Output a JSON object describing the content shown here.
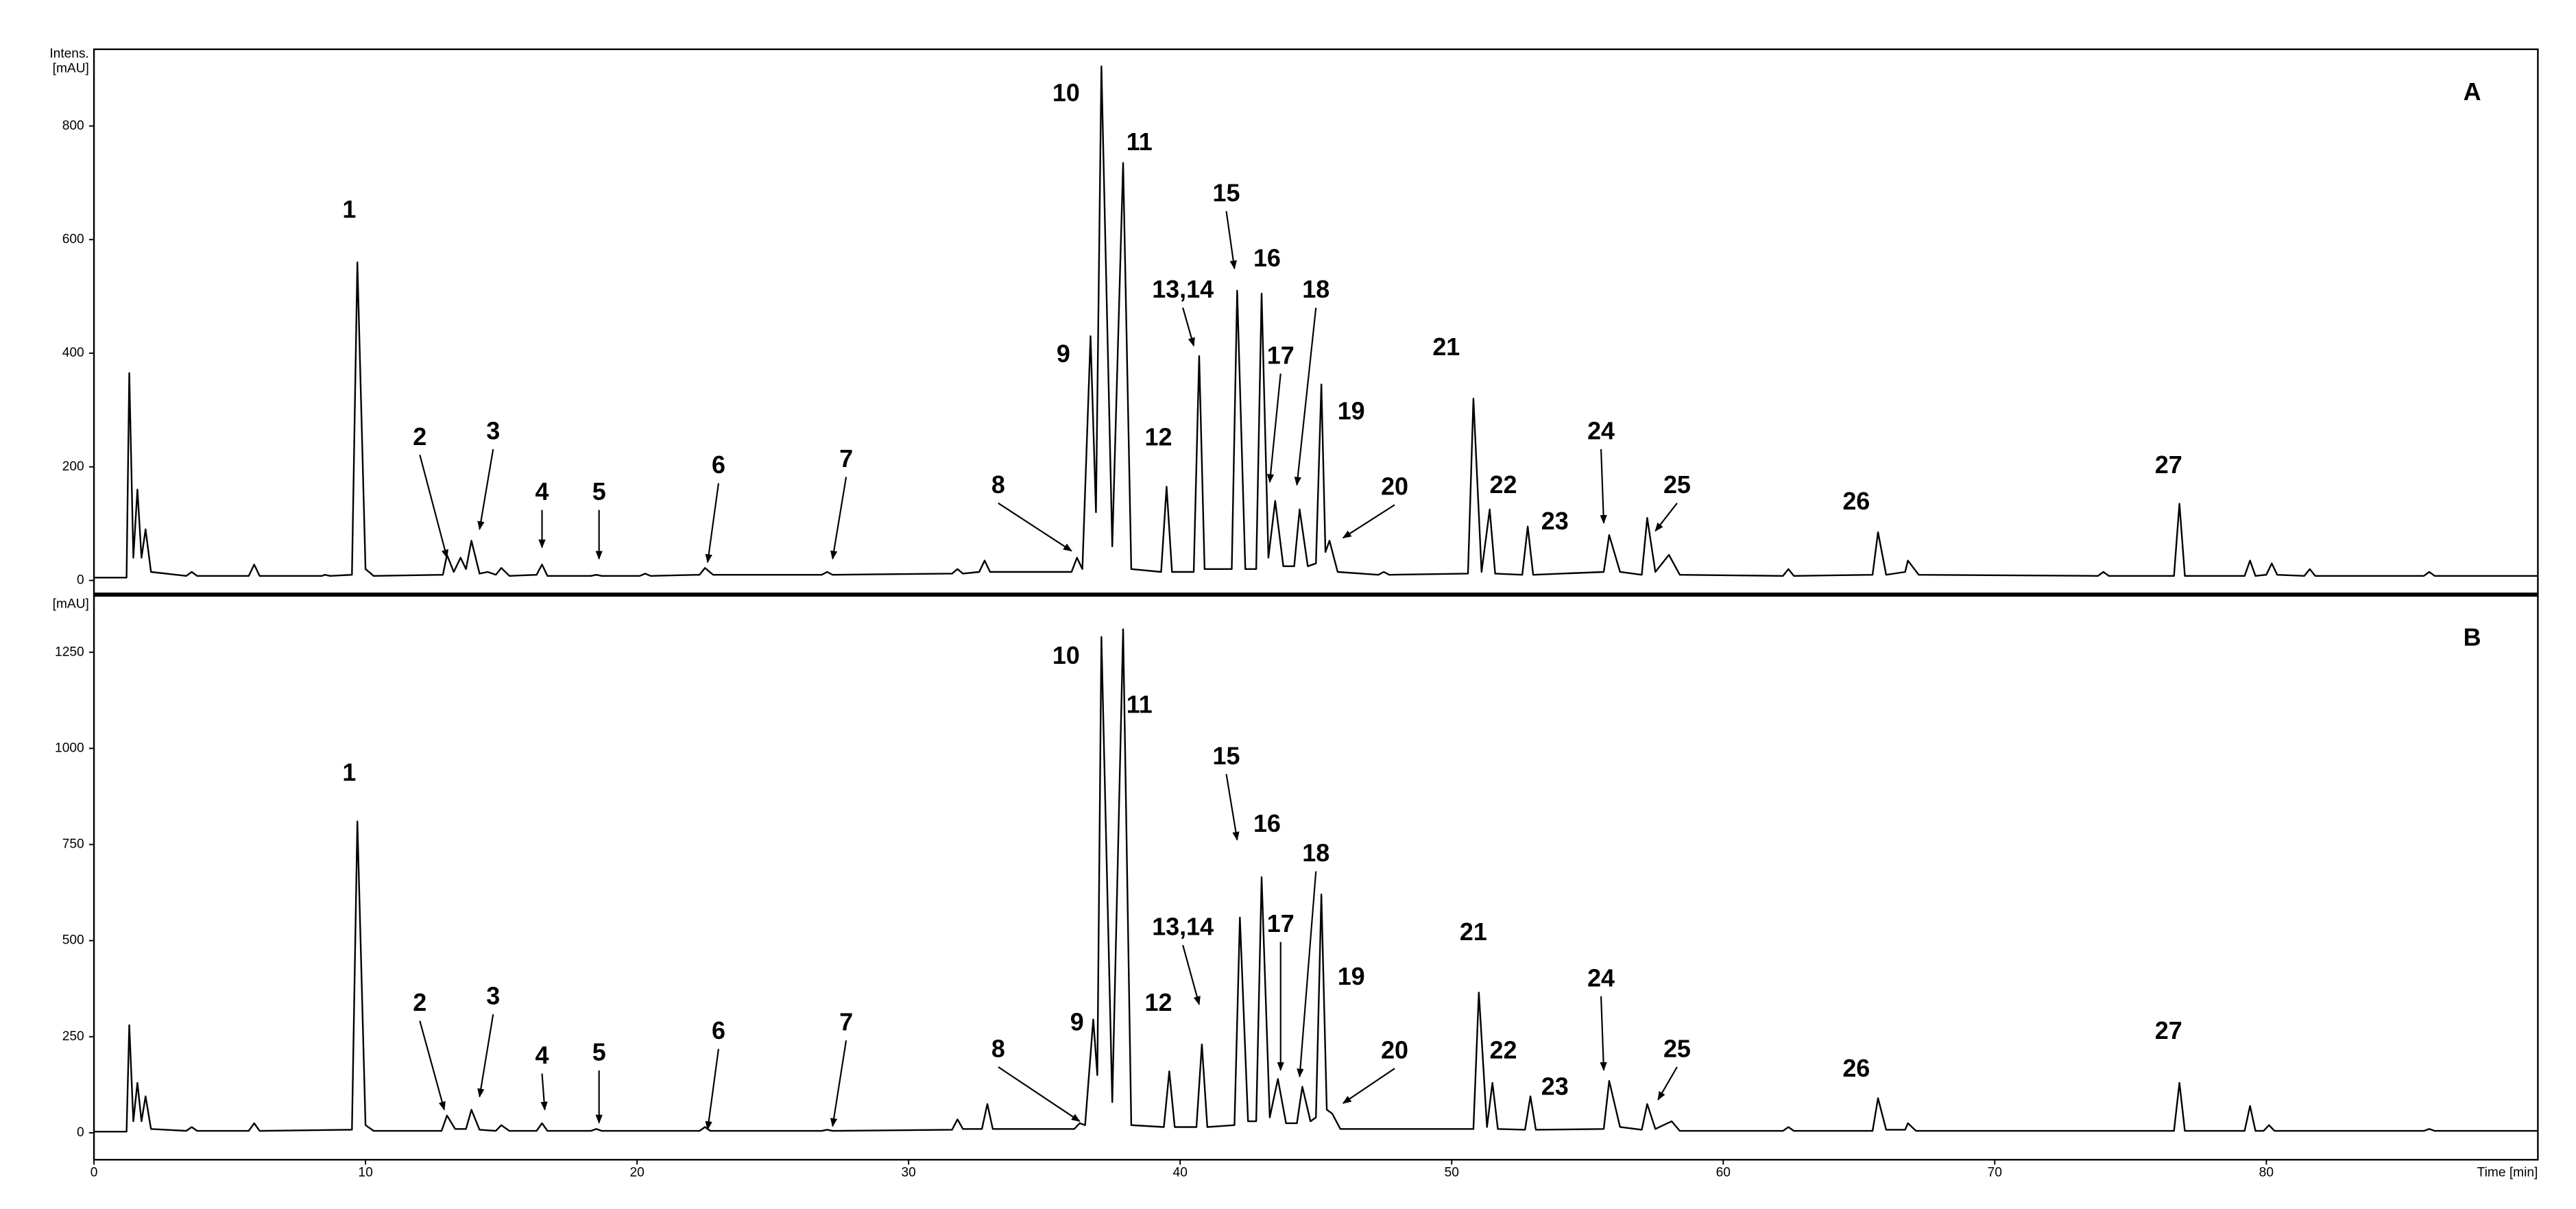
{
  "chart_data": [
    {
      "type": "line",
      "panel_label": "A",
      "ylabel": [
        "Intens.",
        "[mAU]"
      ],
      "xlim": [
        0,
        90
      ],
      "ylim": [
        -25,
        935
      ],
      "yticks": [
        0,
        200,
        400,
        600,
        800
      ],
      "x": [
        0,
        1.2,
        1.3,
        1.45,
        1.6,
        1.75,
        1.9,
        2.1,
        3.4,
        3.6,
        3.8,
        5.7,
        5.9,
        6.1,
        8.4,
        8.5,
        8.7,
        9.5,
        9.7,
        10.0,
        10.3,
        12.85,
        13.0,
        13.25,
        13.5,
        13.7,
        13.9,
        14.2,
        14.5,
        14.8,
        15.0,
        15.3,
        16.3,
        16.5,
        16.7,
        18.3,
        18.5,
        18.7,
        20.1,
        20.3,
        20.5,
        22.3,
        22.5,
        22.8,
        26.8,
        27.0,
        27.2,
        31.6,
        31.8,
        32.0,
        32.6,
        32.8,
        33.0,
        36.0,
        36.2,
        36.4,
        36.7,
        36.9,
        37.1,
        37.5,
        37.9,
        38.2,
        39.3,
        39.5,
        39.7,
        40.5,
        40.7,
        40.9,
        41.9,
        42.1,
        42.4,
        42.8,
        43.0,
        43.25,
        43.5,
        43.8,
        44.2,
        44.4,
        44.7,
        45.0,
        45.2,
        45.35,
        45.5,
        45.8,
        47.3,
        47.5,
        47.7,
        50.6,
        50.8,
        51.1,
        51.4,
        51.6,
        52.6,
        52.8,
        53.0,
        55.6,
        55.8,
        56.2,
        57.0,
        57.2,
        57.5,
        58.0,
        58.4,
        62.2,
        62.4,
        62.6,
        65.5,
        65.7,
        66.0,
        66.7,
        66.8,
        67.2,
        73.8,
        74,
        74.2,
        76.6,
        76.8,
        77.0,
        79.2,
        79.4,
        79.6,
        80.0,
        80.2,
        80.4,
        81.4,
        81.6,
        81.8,
        85.8,
        86,
        86.2,
        90
      ],
      "series": [
        {
          "color": "#000000",
          "values": [
            5,
            5,
            365,
            40,
            160,
            40,
            90,
            15,
            8,
            15,
            8,
            8,
            28,
            8,
            8,
            10,
            8,
            10,
            560,
            20,
            8,
            10,
            45,
            15,
            40,
            20,
            70,
            12,
            15,
            10,
            22,
            8,
            10,
            28,
            8,
            8,
            10,
            8,
            8,
            12,
            8,
            10,
            22,
            10,
            10,
            15,
            10,
            12,
            20,
            12,
            15,
            35,
            15,
            15,
            40,
            20,
            430,
            120,
            905,
            60,
            735,
            20,
            15,
            165,
            15,
            15,
            395,
            20,
            20,
            510,
            20,
            20,
            505,
            40,
            140,
            25,
            25,
            125,
            25,
            30,
            345,
            50,
            70,
            15,
            10,
            15,
            10,
            12,
            320,
            15,
            125,
            12,
            10,
            95,
            10,
            15,
            80,
            15,
            10,
            110,
            15,
            45,
            10,
            8,
            20,
            8,
            10,
            85,
            10,
            15,
            35,
            10,
            8,
            15,
            8,
            8,
            135,
            8,
            8,
            35,
            8,
            10,
            30,
            10,
            8,
            20,
            8,
            8,
            15,
            8,
            8
          ]
        }
      ],
      "annotations": [
        {
          "text": "1",
          "x": 9.4,
          "y": 650
        },
        {
          "text": "2",
          "x": 12.0,
          "y": 250,
          "arrow": [
            13.0,
            40
          ]
        },
        {
          "text": "3",
          "x": 14.7,
          "y": 260,
          "arrow": [
            14.2,
            90
          ]
        },
        {
          "text": "4",
          "x": 16.5,
          "y": 153,
          "arrow": [
            16.5,
            58
          ]
        },
        {
          "text": "5",
          "x": 18.6,
          "y": 153,
          "arrow": [
            18.6,
            38
          ]
        },
        {
          "text": "6",
          "x": 23.0,
          "y": 200,
          "arrow": [
            22.6,
            32
          ]
        },
        {
          "text": "7",
          "x": 27.7,
          "y": 211,
          "arrow": [
            27.2,
            38
          ]
        },
        {
          "text": "8",
          "x": 33.3,
          "y": 165,
          "arrow": [
            36.0,
            52
          ]
        },
        {
          "text": "9",
          "x": 35.7,
          "y": 396
        },
        {
          "text": "10",
          "x": 35.8,
          "y": 855
        },
        {
          "text": "11",
          "x": 38.5,
          "y": 769
        },
        {
          "text": "12",
          "x": 39.2,
          "y": 249
        },
        {
          "text": "13,14",
          "x": 40.1,
          "y": 509,
          "arrow": [
            40.5,
            413
          ]
        },
        {
          "text": "15",
          "x": 41.7,
          "y": 679,
          "arrow": [
            42.0,
            549
          ]
        },
        {
          "text": "16",
          "x": 43.2,
          "y": 564
        },
        {
          "text": "17",
          "x": 43.7,
          "y": 393,
          "arrow": [
            43.3,
            173
          ]
        },
        {
          "text": "18",
          "x": 45.0,
          "y": 509,
          "arrow": [
            44.3,
            168
          ]
        },
        {
          "text": "19",
          "x": 46.3,
          "y": 295
        },
        {
          "text": "20",
          "x": 47.9,
          "y": 162,
          "arrow": [
            46.0,
            75
          ]
        },
        {
          "text": "21",
          "x": 49.8,
          "y": 408
        },
        {
          "text": "22",
          "x": 51.9,
          "y": 165
        },
        {
          "text": "23",
          "x": 53.8,
          "y": 101
        },
        {
          "text": "24",
          "x": 55.5,
          "y": 260,
          "arrow": [
            55.6,
            101
          ]
        },
        {
          "text": "25",
          "x": 58.3,
          "y": 165,
          "arrow": [
            57.5,
            87
          ]
        },
        {
          "text": "26",
          "x": 64.9,
          "y": 136
        },
        {
          "text": "27",
          "x": 76.4,
          "y": 200
        }
      ]
    },
    {
      "type": "line",
      "panel_label": "B",
      "ylabel": [
        "[mAU]"
      ],
      "xlabel": "Time [min]",
      "xlim": [
        0,
        90
      ],
      "xticks": [
        0,
        10,
        20,
        30,
        40,
        50,
        60,
        70,
        80
      ],
      "ylim": [
        -70,
        1400
      ],
      "yticks": [
        0,
        250,
        500,
        750,
        1000,
        1250
      ],
      "x": [
        0,
        1.2,
        1.3,
        1.45,
        1.6,
        1.75,
        1.9,
        2.1,
        3.4,
        3.6,
        3.8,
        5.7,
        5.9,
        6.1,
        9.5,
        9.7,
        10.0,
        10.3,
        12.8,
        13.0,
        13.3,
        13.7,
        13.9,
        14.2,
        14.8,
        15.0,
        15.3,
        16.3,
        16.5,
        16.7,
        18.3,
        18.5,
        18.7,
        22.3,
        22.5,
        22.7,
        26.8,
        27.0,
        27.2,
        31.6,
        31.8,
        32.0,
        32.7,
        32.9,
        33.1,
        36.1,
        36.3,
        36.5,
        36.8,
        36.95,
        37.1,
        37.5,
        37.9,
        38.2,
        39.4,
        39.6,
        39.8,
        40.6,
        40.8,
        41.0,
        42.0,
        42.2,
        42.5,
        42.8,
        43.0,
        43.3,
        43.6,
        43.9,
        44.3,
        44.5,
        44.8,
        45.0,
        45.2,
        45.4,
        45.6,
        45.9,
        50.8,
        51.0,
        51.3,
        51.5,
        51.7,
        52.7,
        52.9,
        53.1,
        55.6,
        55.8,
        56.2,
        57.0,
        57.2,
        57.5,
        58.1,
        58.4,
        62.2,
        62.4,
        62.6,
        65.5,
        65.7,
        66.0,
        66.7,
        66.8,
        67.1,
        76.6,
        76.8,
        77.0,
        79.2,
        79.4,
        79.6,
        79.9,
        80.1,
        80.3,
        85.8,
        86,
        86.2,
        90
      ],
      "series": [
        {
          "color": "#000000",
          "values": [
            3,
            3,
            280,
            30,
            130,
            30,
            95,
            10,
            5,
            15,
            5,
            5,
            25,
            5,
            8,
            810,
            20,
            5,
            5,
            45,
            10,
            10,
            60,
            8,
            5,
            20,
            5,
            5,
            25,
            5,
            5,
            10,
            5,
            5,
            15,
            5,
            5,
            8,
            5,
            8,
            35,
            10,
            10,
            75,
            10,
            10,
            25,
            20,
            295,
            150,
            1290,
            80,
            1310,
            20,
            15,
            160,
            15,
            15,
            230,
            15,
            20,
            560,
            30,
            30,
            665,
            40,
            140,
            25,
            25,
            120,
            30,
            40,
            620,
            60,
            50,
            10,
            10,
            365,
            15,
            130,
            10,
            8,
            95,
            8,
            10,
            135,
            15,
            8,
            75,
            10,
            30,
            5,
            5,
            15,
            5,
            5,
            90,
            8,
            8,
            25,
            5,
            5,
            130,
            5,
            5,
            70,
            5,
            5,
            20,
            5,
            5,
            10,
            5,
            5
          ]
        }
      ],
      "annotations": [
        {
          "text": "1",
          "x": 9.4,
          "y": 933
        },
        {
          "text": "2",
          "x": 12.0,
          "y": 334,
          "arrow": [
            12.9,
            60
          ]
        },
        {
          "text": "3",
          "x": 14.7,
          "y": 351,
          "arrow": [
            14.2,
            94
          ]
        },
        {
          "text": "4",
          "x": 16.5,
          "y": 197,
          "arrow": [
            16.6,
            60
          ]
        },
        {
          "text": "5",
          "x": 18.6,
          "y": 205,
          "arrow": [
            18.6,
            26
          ]
        },
        {
          "text": "6",
          "x": 23.0,
          "y": 261,
          "arrow": [
            22.6,
            9
          ]
        },
        {
          "text": "7",
          "x": 27.7,
          "y": 283,
          "arrow": [
            27.2,
            17
          ]
        },
        {
          "text": "8",
          "x": 33.3,
          "y": 214,
          "arrow": [
            36.3,
            30
          ]
        },
        {
          "text": "9",
          "x": 36.2,
          "y": 283
        },
        {
          "text": "10",
          "x": 35.8,
          "y": 1237
        },
        {
          "text": "11",
          "x": 38.5,
          "y": 1109
        },
        {
          "text": "12",
          "x": 39.2,
          "y": 334
        },
        {
          "text": "13,14",
          "x": 40.1,
          "y": 531,
          "arrow": [
            40.7,
            334
          ]
        },
        {
          "text": "15",
          "x": 41.7,
          "y": 976,
          "arrow": [
            42.1,
            762
          ]
        },
        {
          "text": "16",
          "x": 43.2,
          "y": 800
        },
        {
          "text": "17",
          "x": 43.7,
          "y": 539,
          "arrow": [
            43.7,
            163
          ]
        },
        {
          "text": "18",
          "x": 45.0,
          "y": 723,
          "arrow": [
            44.4,
            146
          ]
        },
        {
          "text": "19",
          "x": 46.3,
          "y": 402
        },
        {
          "text": "20",
          "x": 47.9,
          "y": 210,
          "arrow": [
            46.0,
            77
          ]
        },
        {
          "text": "21",
          "x": 50.8,
          "y": 518
        },
        {
          "text": "22",
          "x": 51.9,
          "y": 210
        },
        {
          "text": "23",
          "x": 53.8,
          "y": 116
        },
        {
          "text": "24",
          "x": 55.5,
          "y": 398,
          "arrow": [
            55.6,
            163
          ]
        },
        {
          "text": "25",
          "x": 58.3,
          "y": 214,
          "arrow": [
            57.6,
            86
          ]
        },
        {
          "text": "26",
          "x": 64.9,
          "y": 163
        },
        {
          "text": "27",
          "x": 76.4,
          "y": 261
        }
      ]
    }
  ]
}
